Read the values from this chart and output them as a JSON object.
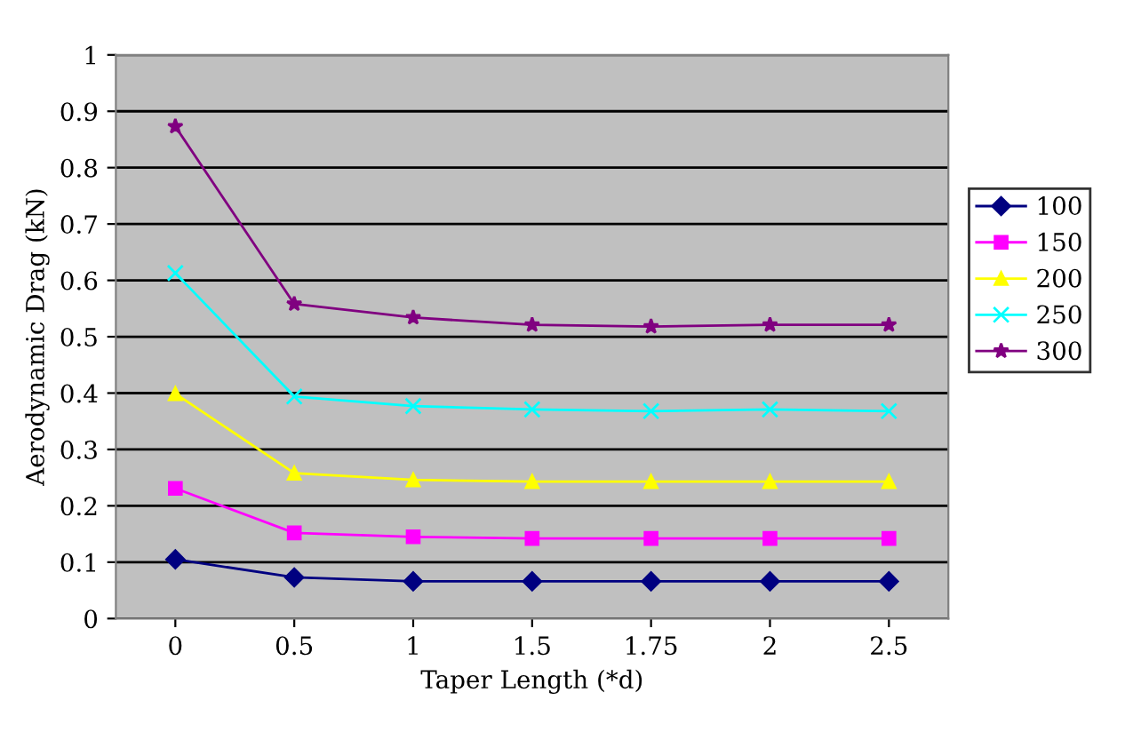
{
  "chart_data": {
    "type": "line",
    "xlabel": "Taper Length (*d)",
    "ylabel": "Aerodynamic Drag (kN)",
    "categories": [
      "0",
      "0.5",
      "1",
      "1.5",
      "1.75",
      "2",
      "2.5"
    ],
    "ylim": [
      0,
      1
    ],
    "yticks": [
      0,
      0.1,
      0.2,
      0.3,
      0.4,
      0.5,
      0.6,
      0.7,
      0.8,
      0.9,
      1
    ],
    "grid": "y",
    "legend": "right",
    "series": [
      {
        "name": "100",
        "color": "#000080",
        "marker": "diamond",
        "values": [
          0.105,
          0.073,
          0.066,
          0.066,
          0.066,
          0.066,
          0.066
        ]
      },
      {
        "name": "150",
        "color": "#ff00ff",
        "marker": "square",
        "values": [
          0.231,
          0.152,
          0.145,
          0.142,
          0.142,
          0.142,
          0.142
        ]
      },
      {
        "name": "200",
        "color": "#ffff00",
        "marker": "triangle",
        "values": [
          0.399,
          0.258,
          0.246,
          0.243,
          0.243,
          0.243,
          0.243
        ]
      },
      {
        "name": "250",
        "color": "#00ffff",
        "marker": "cross",
        "values": [
          0.613,
          0.394,
          0.377,
          0.371,
          0.368,
          0.371,
          0.368
        ]
      },
      {
        "name": "300",
        "color": "#800080",
        "marker": "star",
        "values": [
          0.873,
          0.558,
          0.534,
          0.521,
          0.518,
          0.521,
          0.521
        ]
      }
    ]
  }
}
